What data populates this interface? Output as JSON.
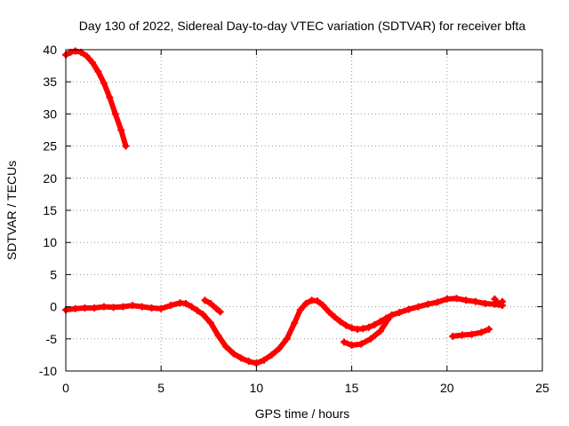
{
  "chart_data": {
    "type": "scatter",
    "title": "Day 130 of 2022, Sidereal Day-to-day VTEC variation (SDTVAR) for receiver bfta",
    "xlabel": "GPS time / hours",
    "ylabel": "SDTVAR / TECUs",
    "xlim": [
      0,
      25
    ],
    "ylim": [
      -10,
      40
    ],
    "xticks": [
      0,
      5,
      10,
      15,
      20,
      25
    ],
    "yticks": [
      -10,
      -5,
      0,
      5,
      10,
      15,
      20,
      25,
      30,
      35,
      40
    ],
    "grid": true,
    "legend": "none",
    "series_color": "#ff0000",
    "series": [
      {
        "name": "segment-1",
        "x": [
          0.0,
          0.25,
          0.5,
          0.8,
          1.1,
          1.4,
          1.7,
          2.0,
          2.3,
          2.6,
          2.9,
          3.15
        ],
        "y": [
          39.2,
          39.6,
          39.8,
          39.6,
          39.0,
          38.0,
          36.6,
          34.8,
          32.6,
          30.0,
          27.5,
          25.0
        ]
      },
      {
        "name": "segment-2",
        "x": [
          0.0,
          0.5,
          1.0,
          1.5,
          2.0,
          2.5,
          3.0,
          3.5,
          4.0,
          4.5,
          5.0,
          5.5,
          6.0,
          6.3,
          6.6,
          6.9,
          7.2,
          7.6,
          8.0,
          8.4,
          8.8,
          9.2,
          9.6,
          10.0,
          10.4,
          10.8,
          11.2,
          11.6,
          12.0,
          12.3,
          12.6,
          12.9,
          13.2,
          13.5,
          13.8,
          14.1,
          14.4,
          14.7,
          15.0,
          15.3,
          15.6,
          15.9,
          16.2,
          16.5,
          16.8,
          17.1,
          17.5,
          18.0,
          18.5,
          19.0,
          19.5,
          20.0,
          20.5,
          21.0,
          21.5,
          22.0,
          22.5,
          22.9
        ],
        "y": [
          -0.5,
          -0.3,
          -0.2,
          -0.2,
          0.0,
          -0.1,
          0.0,
          0.2,
          0.0,
          -0.2,
          -0.3,
          0.2,
          0.6,
          0.5,
          0.0,
          -0.6,
          -1.2,
          -2.5,
          -4.5,
          -6.2,
          -7.3,
          -8.0,
          -8.5,
          -8.8,
          -8.3,
          -7.5,
          -6.5,
          -5.0,
          -2.5,
          -0.5,
          0.5,
          1.0,
          0.9,
          0.2,
          -0.8,
          -1.6,
          -2.3,
          -2.9,
          -3.3,
          -3.5,
          -3.4,
          -3.2,
          -2.8,
          -2.3,
          -1.8,
          -1.3,
          -0.9,
          -0.4,
          0.0,
          0.4,
          0.7,
          1.2,
          1.3,
          1.0,
          0.8,
          0.5,
          0.4,
          0.2
        ]
      },
      {
        "name": "segment-3",
        "x": [
          7.3,
          7.6,
          7.9,
          8.1
        ],
        "y": [
          1.0,
          0.5,
          -0.3,
          -0.8
        ]
      },
      {
        "name": "segment-4",
        "x": [
          14.6,
          15.0,
          15.5,
          16.0,
          16.5,
          16.9
        ],
        "y": [
          -5.5,
          -6.0,
          -5.8,
          -5.0,
          -3.8,
          -2.0
        ]
      },
      {
        "name": "segment-5",
        "x": [
          20.3,
          20.8,
          21.3,
          21.8,
          22.2
        ],
        "y": [
          -4.6,
          -4.4,
          -4.3,
          -4.0,
          -3.5
        ]
      },
      {
        "name": "segment-6",
        "x": [
          22.5,
          22.7,
          22.9
        ],
        "y": [
          1.2,
          0.4,
          0.8
        ]
      }
    ]
  }
}
